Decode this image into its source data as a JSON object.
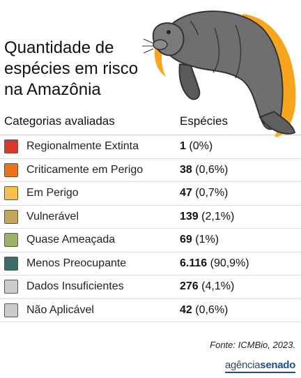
{
  "title": "Quantidade de\nespécies em risco\nna Amazônia",
  "headers": {
    "category": "Categorias avaliadas",
    "species": "Espécies"
  },
  "chart_data": {
    "type": "table",
    "title": "Quantidade de espécies em risco na Amazônia",
    "columns": [
      "Categorias avaliadas",
      "Espécies"
    ],
    "rows": [
      {
        "category": "Regionalmente Extinta",
        "count": "1",
        "pct": "(0%)",
        "color": "#d73a2a"
      },
      {
        "category": "Criticamente em Perigo",
        "count": "38",
        "pct": "(0,6%)",
        "color": "#e8731a"
      },
      {
        "category": "Em Perigo",
        "count": "47",
        "pct": "(0,7%)",
        "color": "#f7c04a"
      },
      {
        "category": "Vulnerável",
        "count": "139",
        "pct": "(2,1%)",
        "color": "#c4a55a"
      },
      {
        "category": "Quase Ameaçada",
        "count": "69",
        "pct": "(1%)",
        "color": "#9bb46a"
      },
      {
        "category": "Menos Preocupante",
        "count": "6.116",
        "pct": "(90,9%)",
        "color": "#3e6a6a"
      },
      {
        "category": "Dados Insuficientes",
        "count": "276",
        "pct": "(4,1%)",
        "color": "#cccccc"
      },
      {
        "category": "Não Aplicável",
        "count": "42",
        "pct": "(0,6%)",
        "color": "#cccccc"
      }
    ]
  },
  "source": "Fonte: ICMBio, 2023.",
  "brand": {
    "part1": "agência",
    "part2": "senado"
  },
  "illustration": {
    "icon": "manatee-icon",
    "accent_color": "#f7a51c"
  }
}
